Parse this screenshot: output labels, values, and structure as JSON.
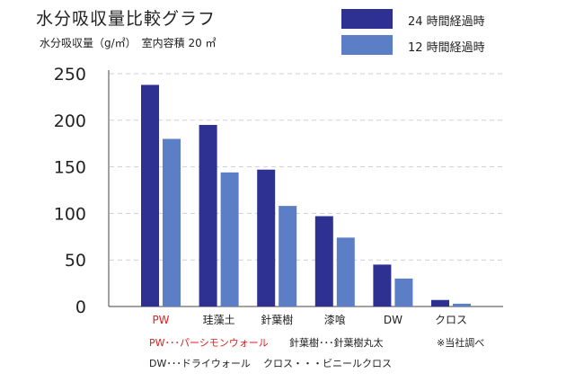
{
  "chart_data": {
    "type": "bar",
    "title": "水分吸収量比較グラフ",
    "subtitle": "水分吸収量（g/㎡）　室内容積 20 ㎡",
    "categories": [
      "PW",
      "珪藻土",
      "針葉樹",
      "漆喰",
      "DW",
      "クロス"
    ],
    "category_colors": [
      "#e01e1e",
      "#222222",
      "#222222",
      "#222222",
      "#222222",
      "#222222"
    ],
    "series": [
      {
        "name": "24 時間経過時",
        "color": "#2e3192",
        "values": [
          238,
          195,
          147,
          97,
          45,
          7
        ]
      },
      {
        "name": "12 時間経過時",
        "color": "#5b7ec7",
        "values": [
          180,
          144,
          108,
          74,
          30,
          3
        ]
      }
    ],
    "ylim": [
      0,
      250
    ],
    "yticks": [
      0,
      50,
      100,
      150,
      200,
      250
    ],
    "grid": "dashed horizontal",
    "legend_position": "top-right"
  },
  "notes": {
    "pw_note": "PW･･･パーシモンウォール",
    "shinyoju_note": "針葉樹･･･針葉樹丸太",
    "source_note": "※当社調べ",
    "dw_note": "DW･･･ドライウォール",
    "cross_note": "クロス・・・ビニールクロス"
  }
}
